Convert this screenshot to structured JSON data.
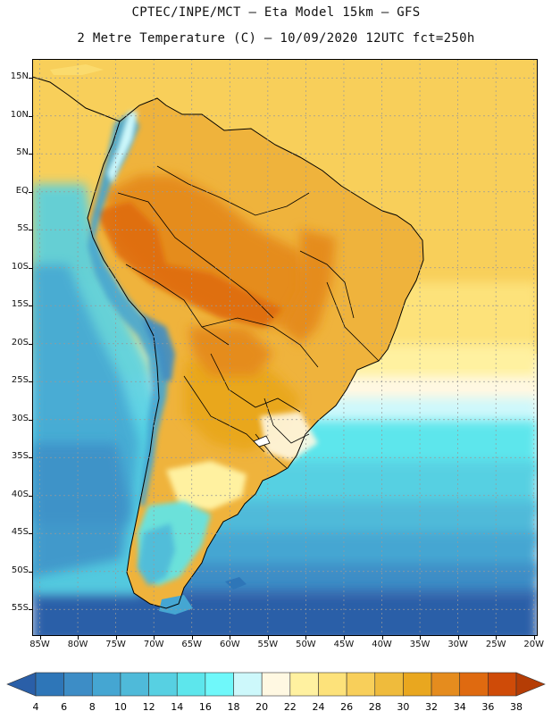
{
  "header": {
    "line1": "CPTEC/INPE/MCT –  Eta Model 15km – GFS",
    "line2": "2 Metre Temperature (C) – 10/09/2020 12UTC fct=250h"
  },
  "map": {
    "lat_labels": [
      "15N",
      "10N",
      "5N",
      "EQ",
      "5S",
      "10S",
      "15S",
      "20S",
      "25S",
      "30S",
      "35S",
      "40S",
      "45S",
      "50S",
      "55S"
    ],
    "lat_values": [
      15,
      10,
      5,
      0,
      -5,
      -10,
      -15,
      -20,
      -25,
      -30,
      -35,
      -40,
      -45,
      -50,
      -55
    ],
    "lon_labels": [
      "85W",
      "80W",
      "75W",
      "70W",
      "65W",
      "60W",
      "55W",
      "50W",
      "45W",
      "40W",
      "35W",
      "30W",
      "25W",
      "20W"
    ],
    "lon_values": [
      -85,
      -80,
      -75,
      -70,
      -65,
      -60,
      -55,
      -50,
      -45,
      -40,
      -35,
      -30,
      -25,
      -20
    ],
    "extent": {
      "lon_min": -86,
      "lon_max": -19.5,
      "lat_min": -58.5,
      "lat_max": 17.5
    }
  },
  "colorbar": {
    "labels": [
      "4",
      "6",
      "8",
      "10",
      "12",
      "14",
      "16",
      "18",
      "20",
      "22",
      "24",
      "26",
      "28",
      "30",
      "32",
      "34",
      "36",
      "38"
    ],
    "colors": [
      "#2a5fa8",
      "#2e76b8",
      "#3d8dc6",
      "#45a6d2",
      "#4fbad9",
      "#57d0e2",
      "#5de6ec",
      "#6ff8fa",
      "#cdf8fb",
      "#fff8e2",
      "#fff1a0",
      "#fde27a",
      "#f8cf5a",
      "#efbb3c",
      "#e9a71f",
      "#e58c1e",
      "#df6a10",
      "#cf4b08",
      "#b53d05"
    ]
  }
}
